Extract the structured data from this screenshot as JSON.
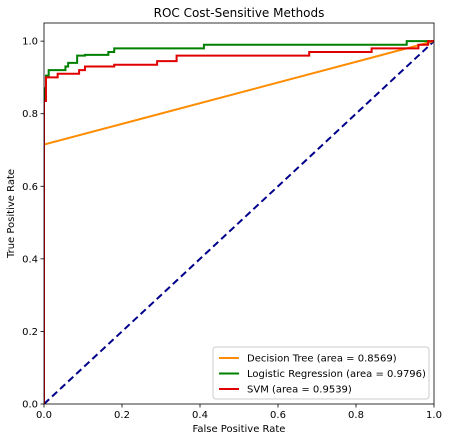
{
  "chart_data": {
    "type": "line",
    "title": "ROC Cost-Sensitive Methods",
    "xlabel": "False Positive Rate",
    "ylabel": "True Positive Rate",
    "xlim": [
      0.0,
      1.0
    ],
    "ylim": [
      0.0,
      1.05
    ],
    "xticks": [
      "0.0",
      "0.2",
      "0.4",
      "0.6",
      "0.8",
      "1.0"
    ],
    "yticks": [
      "0.0",
      "0.2",
      "0.4",
      "0.6",
      "0.8",
      "1.0"
    ],
    "grid": false,
    "legend_position": "bottom-right",
    "series": [
      {
        "name": "Decision Tree (area = 0.8569)",
        "color": "#ff8c00",
        "x": [
          0.0,
          0.0,
          1.0
        ],
        "y": [
          0.0,
          0.715,
          1.0
        ]
      },
      {
        "name": "Logistic Regression (area = 0.9796)",
        "color": "#008000",
        "x": [
          0.0,
          0.0,
          0.005,
          0.005,
          0.012,
          0.012,
          0.055,
          0.055,
          0.062,
          0.062,
          0.085,
          0.085,
          0.105,
          0.105,
          0.165,
          0.165,
          0.18,
          0.18,
          0.41,
          0.41,
          0.93,
          0.93,
          1.0
        ],
        "y": [
          0.0,
          0.87,
          0.87,
          0.905,
          0.905,
          0.92,
          0.92,
          0.93,
          0.93,
          0.94,
          0.94,
          0.96,
          0.96,
          0.962,
          0.962,
          0.97,
          0.97,
          0.98,
          0.98,
          0.99,
          0.99,
          1.0,
          1.0
        ]
      },
      {
        "name": "SVM (area = 0.9539)",
        "color": "#e00000",
        "x": [
          0.0,
          0.0,
          0.005,
          0.005,
          0.012,
          0.012,
          0.035,
          0.035,
          0.09,
          0.09,
          0.105,
          0.105,
          0.18,
          0.18,
          0.29,
          0.29,
          0.34,
          0.34,
          0.68,
          0.68,
          0.84,
          0.84,
          0.96,
          0.96,
          0.985,
          0.985,
          1.0
        ],
        "y": [
          0.0,
          0.835,
          0.835,
          0.9,
          0.9,
          0.9,
          0.9,
          0.91,
          0.91,
          0.92,
          0.92,
          0.93,
          0.93,
          0.935,
          0.935,
          0.945,
          0.945,
          0.96,
          0.96,
          0.97,
          0.97,
          0.98,
          0.98,
          0.99,
          0.99,
          1.0,
          1.0
        ]
      },
      {
        "name": "",
        "color": "#00008b",
        "dashed": true,
        "x": [
          0.0,
          1.0
        ],
        "y": [
          0.0,
          1.0
        ]
      }
    ]
  }
}
